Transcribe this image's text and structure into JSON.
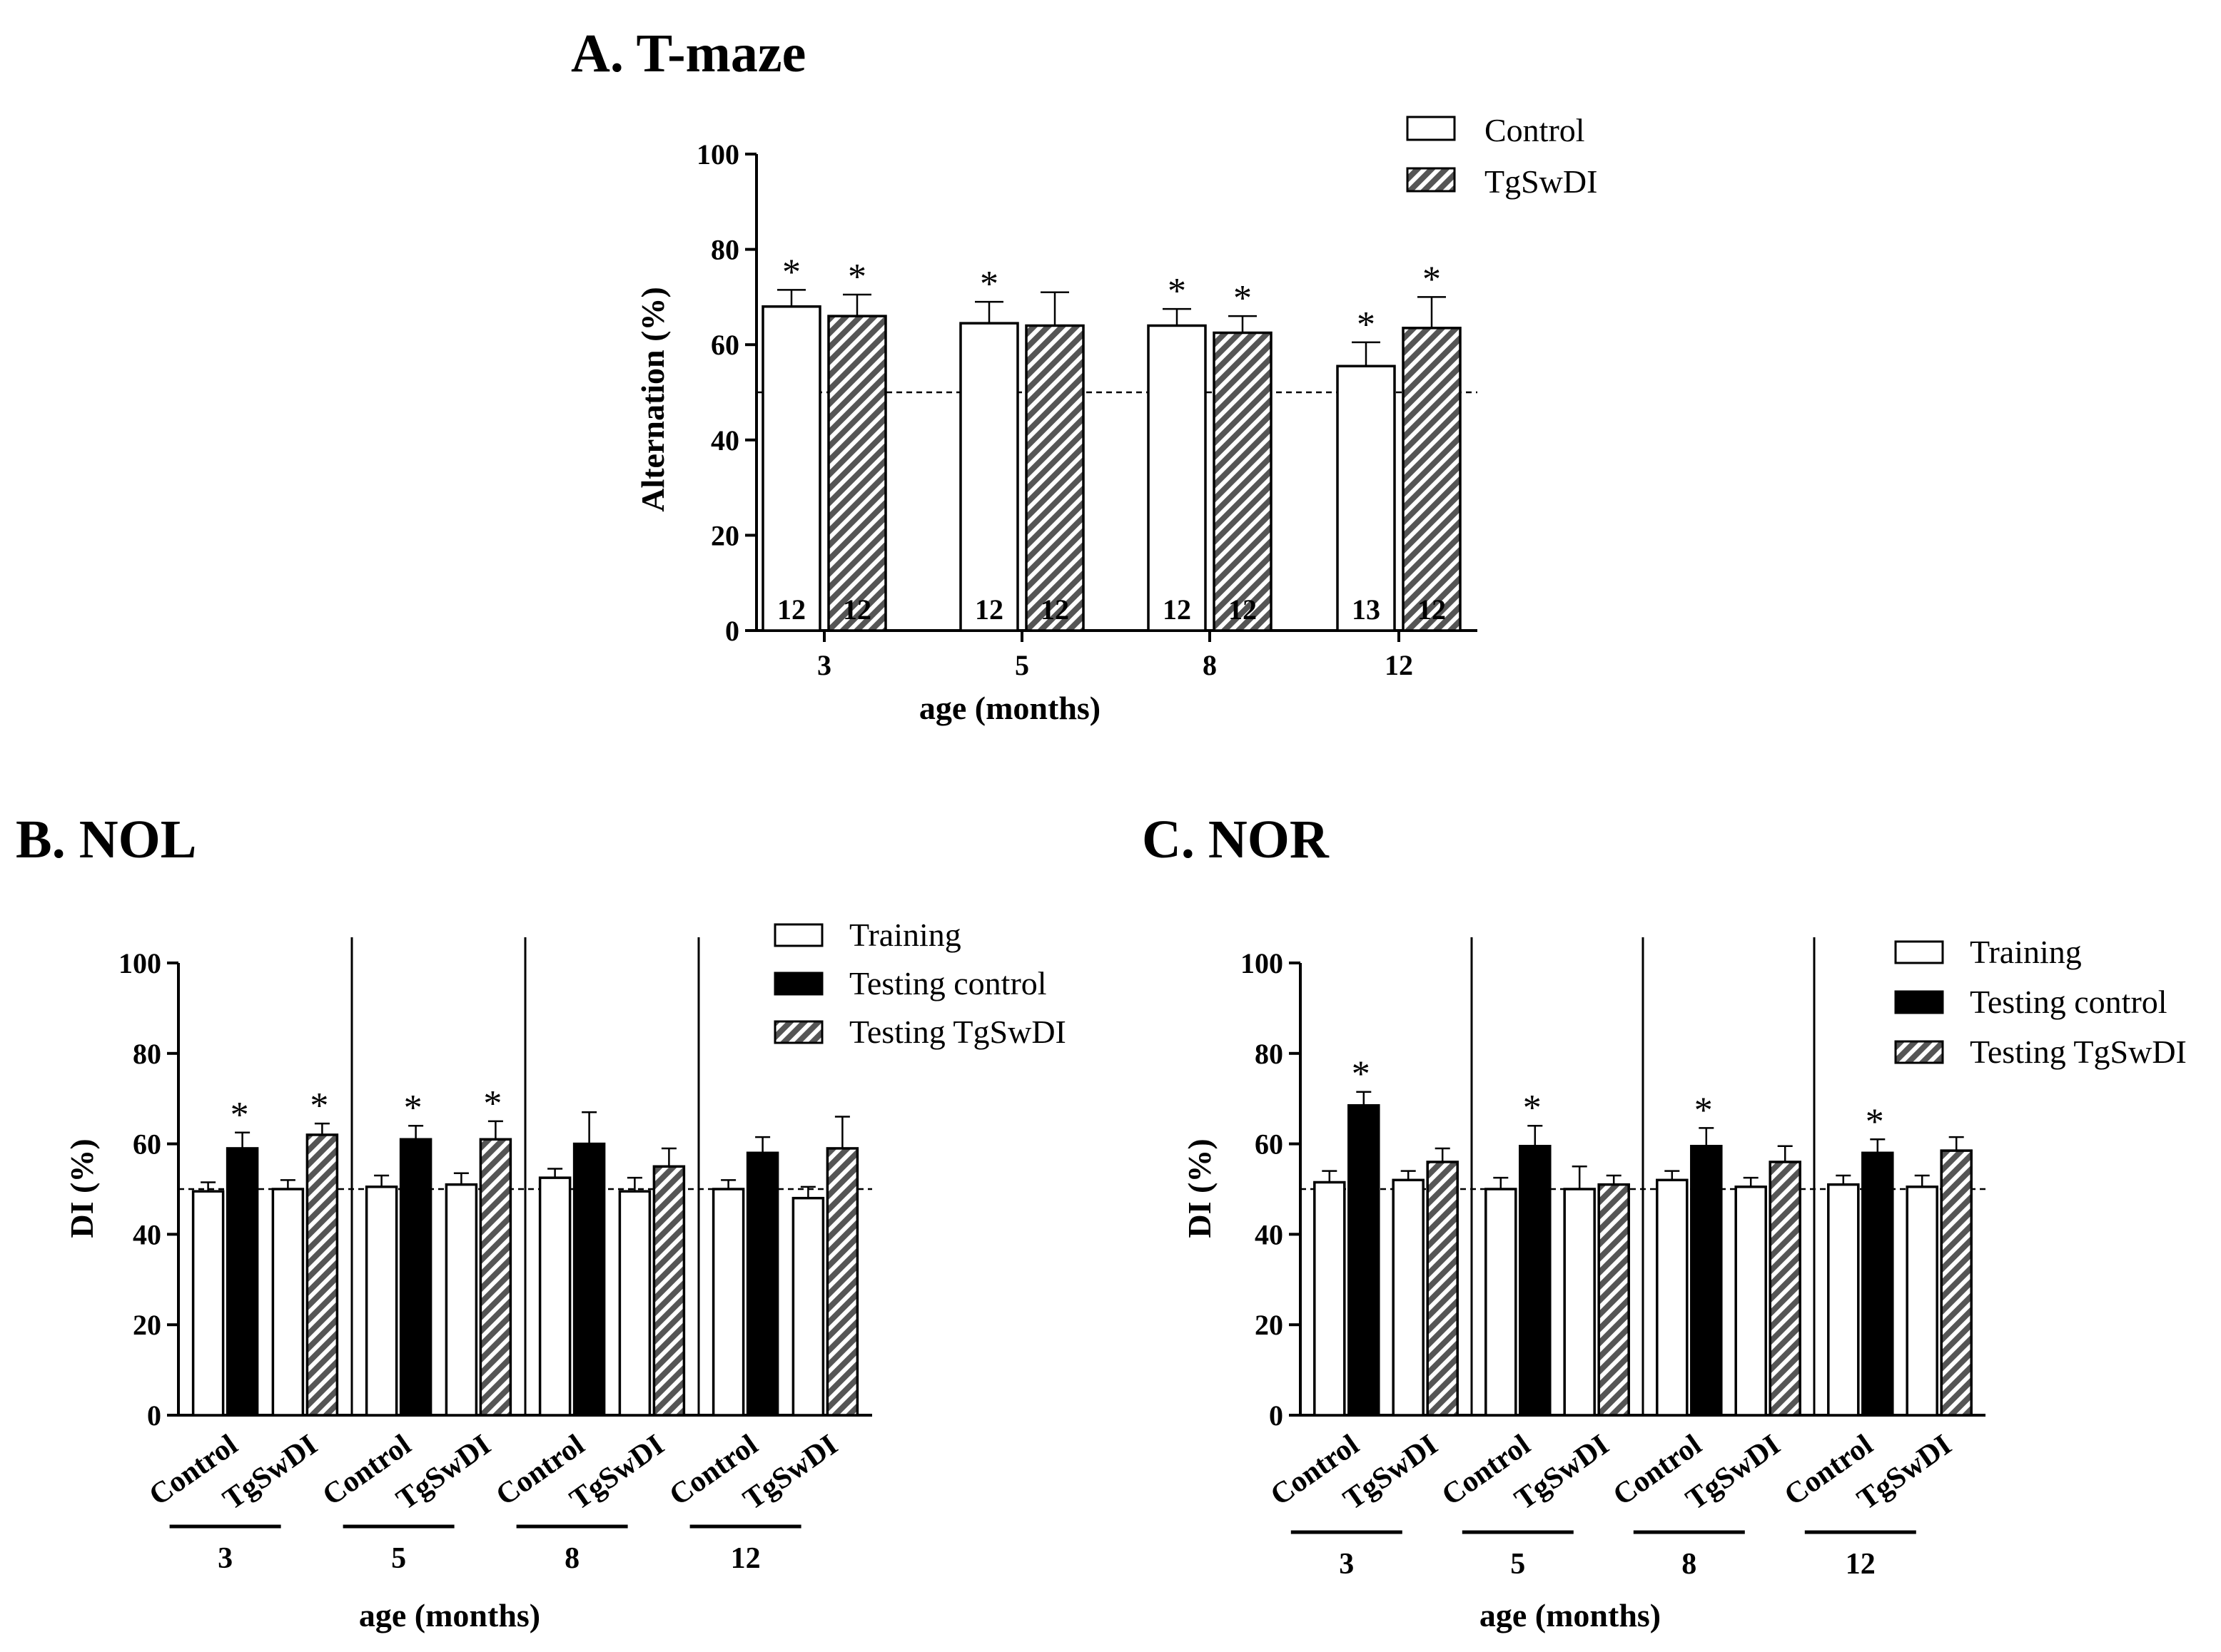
{
  "colors": {
    "ink": "#000000",
    "white": "#ffffff",
    "hatch": "#555555",
    "bg": "#ffffff"
  },
  "chart_data": [
    {
      "id": "A",
      "type": "bar",
      "title": "A. T-maze",
      "xlabel": "age (months)",
      "ylabel": "Alternation (%)",
      "ylim": [
        0,
        100
      ],
      "yticks": [
        0,
        20,
        40,
        60,
        80,
        100
      ],
      "categories": [
        "3",
        "5",
        "8",
        "12"
      ],
      "chance_line": 50,
      "legend": {
        "position": "top-right",
        "entries": [
          {
            "label": "Control",
            "style": "white"
          },
          {
            "label": "TgSwDI",
            "style": "hatch"
          }
        ]
      },
      "series": [
        {
          "name": "Control",
          "style": "white",
          "values": [
            68,
            64.5,
            64,
            55.5
          ],
          "errors": [
            3.5,
            4.5,
            3.5,
            5
          ],
          "n": [
            "12",
            "12",
            "12",
            "13"
          ],
          "significant": [
            true,
            true,
            true,
            true
          ]
        },
        {
          "name": "TgSwDI",
          "style": "hatch",
          "values": [
            66,
            64,
            62.5,
            63.5
          ],
          "errors": [
            4.5,
            7,
            3.5,
            6.5
          ],
          "n": [
            "12",
            "12",
            "12",
            "12"
          ],
          "significant": [
            true,
            false,
            true,
            true
          ]
        }
      ]
    },
    {
      "id": "B",
      "type": "bar",
      "title": "B. NOL",
      "xlabel": "age (months)",
      "ylabel": "DI (%)",
      "ylim": [
        0,
        100
      ],
      "yticks": [
        0,
        20,
        40,
        60,
        80,
        100
      ],
      "chance_line": 50,
      "legend": {
        "position": "top-right",
        "entries": [
          {
            "label": "Training",
            "style": "white"
          },
          {
            "label": "Testing control",
            "style": "black"
          },
          {
            "label": "Testing TgSwDI",
            "style": "hatch"
          }
        ]
      },
      "groups": [
        {
          "age": "3",
          "pairs": [
            {
              "label": "Control",
              "training": 49.5,
              "training_err": 2,
              "testing": 59,
              "testing_err": 3.5,
              "testing_style": "black",
              "significant": true
            },
            {
              "label": "TgSwDI",
              "training": 50,
              "training_err": 2,
              "testing": 62,
              "testing_err": 2.5,
              "testing_style": "hatch",
              "significant": true
            }
          ]
        },
        {
          "age": "5",
          "pairs": [
            {
              "label": "Control",
              "training": 50.5,
              "training_err": 2.5,
              "testing": 61,
              "testing_err": 3,
              "testing_style": "black",
              "significant": true
            },
            {
              "label": "TgSwDI",
              "training": 51,
              "training_err": 2.5,
              "testing": 61,
              "testing_err": 4,
              "testing_style": "hatch",
              "significant": true
            }
          ]
        },
        {
          "age": "8",
          "pairs": [
            {
              "label": "Control",
              "training": 52.5,
              "training_err": 2,
              "testing": 60,
              "testing_err": 7,
              "testing_style": "black",
              "significant": false
            },
            {
              "label": "TgSwDI",
              "training": 49.5,
              "training_err": 3,
              "testing": 55,
              "testing_err": 4,
              "testing_style": "hatch",
              "significant": false
            }
          ]
        },
        {
          "age": "12",
          "pairs": [
            {
              "label": "Control",
              "training": 50,
              "training_err": 2,
              "testing": 58,
              "testing_err": 3.5,
              "testing_style": "black",
              "significant": false
            },
            {
              "label": "TgSwDI",
              "training": 48,
              "training_err": 2.5,
              "testing": 59,
              "testing_err": 7,
              "testing_style": "hatch",
              "significant": false
            }
          ]
        }
      ]
    },
    {
      "id": "C",
      "type": "bar",
      "title": "C. NOR",
      "xlabel": "age (months)",
      "ylabel": "DI (%)",
      "ylim": [
        0,
        100
      ],
      "yticks": [
        0,
        20,
        40,
        60,
        80,
        100
      ],
      "chance_line": 50,
      "legend": {
        "position": "top-right",
        "entries": [
          {
            "label": "Training",
            "style": "white"
          },
          {
            "label": "Testing control",
            "style": "black"
          },
          {
            "label": "Testing TgSwDI",
            "style": "hatch"
          }
        ]
      },
      "groups": [
        {
          "age": "3",
          "pairs": [
            {
              "label": "Control",
              "training": 51.5,
              "training_err": 2.5,
              "testing": 68.5,
              "testing_err": 3,
              "testing_style": "black",
              "significant": true
            },
            {
              "label": "TgSwDI",
              "training": 52,
              "training_err": 2,
              "testing": 56,
              "testing_err": 3,
              "testing_style": "hatch",
              "significant": false
            }
          ]
        },
        {
          "age": "5",
          "pairs": [
            {
              "label": "Control",
              "training": 50,
              "training_err": 2.5,
              "testing": 59.5,
              "testing_err": 4.5,
              "testing_style": "black",
              "significant": true
            },
            {
              "label": "TgSwDI",
              "training": 50,
              "training_err": 5,
              "testing": 51,
              "testing_err": 2,
              "testing_style": "hatch",
              "significant": false
            }
          ]
        },
        {
          "age": "8",
          "pairs": [
            {
              "label": "Control",
              "training": 52,
              "training_err": 2,
              "testing": 59.5,
              "testing_err": 4,
              "testing_style": "black",
              "significant": true
            },
            {
              "label": "TgSwDI",
              "training": 50.5,
              "training_err": 2,
              "testing": 56,
              "testing_err": 3.5,
              "testing_style": "hatch",
              "significant": false
            }
          ]
        },
        {
          "age": "12",
          "pairs": [
            {
              "label": "Control",
              "training": 51,
              "training_err": 2,
              "testing": 58,
              "testing_err": 3,
              "testing_style": "black",
              "significant": true
            },
            {
              "label": "TgSwDI",
              "training": 50.5,
              "training_err": 2.5,
              "testing": 58.5,
              "testing_err": 3,
              "testing_style": "hatch",
              "significant": false
            }
          ]
        }
      ]
    }
  ]
}
